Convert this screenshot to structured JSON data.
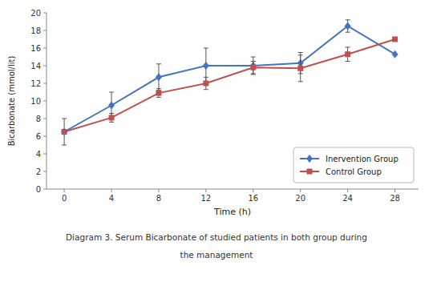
{
  "chart_data": {
    "type": "line",
    "x": [
      0,
      4,
      8,
      12,
      16,
      20,
      24,
      28
    ],
    "series": [
      {
        "name": "Inervention Group",
        "color": "#4472C4",
        "marker": "diamond",
        "values": [
          6.5,
          9.5,
          12.7,
          14.0,
          14.0,
          14.3,
          18.5,
          15.3
        ],
        "errors": [
          1.5,
          1.5,
          1.5,
          2.0,
          1.0,
          1.2,
          0.7,
          0.0
        ]
      },
      {
        "name": "Control Group",
        "color": "#C0504D",
        "marker": "square",
        "values": [
          6.5,
          8.1,
          10.9,
          12.0,
          13.8,
          13.7,
          15.3,
          17.0
        ],
        "errors": [
          0.0,
          0.5,
          0.5,
          0.7,
          0.7,
          1.5,
          0.8,
          0.0
        ]
      }
    ],
    "xlabel": "Time (h)",
    "ylabel": "Bicarbonate (mmol/lit)",
    "xlim": [
      -1.5,
      30
    ],
    "xticks": [
      0,
      4,
      8,
      12,
      16,
      20,
      24,
      28
    ],
    "ylim": [
      0,
      20
    ],
    "yticks": [
      0,
      2,
      4,
      6,
      8,
      10,
      12,
      14,
      16,
      18,
      20
    ],
    "annotations": [
      "Diagram 3. Serum Bicarbonate of studied patients in both group during",
      "the management"
    ],
    "legend": "lower right",
    "grid": false
  }
}
